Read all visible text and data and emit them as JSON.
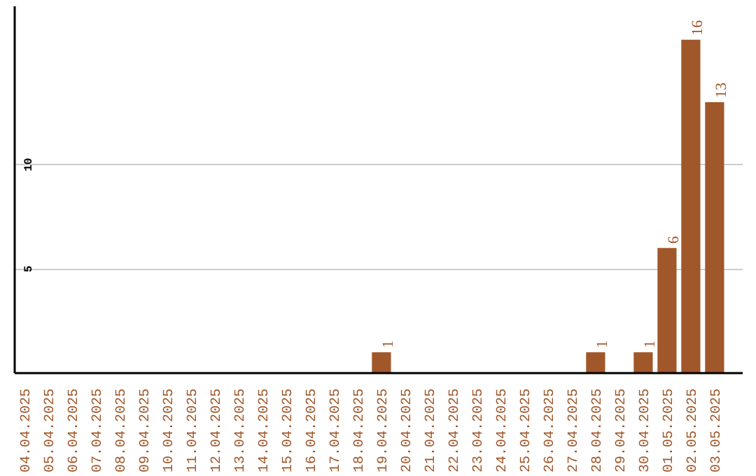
{
  "chart_data": {
    "type": "bar",
    "categories": [
      "04.04.2025",
      "05.04.2025",
      "06.04.2025",
      "07.04.2025",
      "08.04.2025",
      "09.04.2025",
      "10.04.2025",
      "11.04.2025",
      "12.04.2025",
      "13.04.2025",
      "14.04.2025",
      "15.04.2025",
      "16.04.2025",
      "17.04.2025",
      "18.04.2025",
      "19.04.2025",
      "20.04.2025",
      "21.04.2025",
      "22.04.2025",
      "23.04.2025",
      "24.04.2025",
      "25.04.2025",
      "26.04.2025",
      "27.04.2025",
      "28.04.2025",
      "29.04.2025",
      "30.04.2025",
      "01.05.2025",
      "02.05.2025",
      "03.05.2025"
    ],
    "values": [
      0,
      0,
      0,
      0,
      0,
      0,
      0,
      0,
      0,
      0,
      0,
      0,
      0,
      0,
      0,
      1,
      0,
      0,
      0,
      0,
      0,
      0,
      0,
      0,
      1,
      0,
      1,
      6,
      16,
      13
    ],
    "value_labels": [
      null,
      null,
      null,
      null,
      null,
      null,
      null,
      null,
      null,
      null,
      null,
      null,
      null,
      null,
      null,
      "1",
      null,
      null,
      null,
      null,
      null,
      null,
      null,
      null,
      "1",
      null,
      "1",
      "6",
      "16",
      "13"
    ],
    "color": "#a0572a",
    "ylim": [
      0,
      17.6
    ],
    "yticks": [
      5,
      10
    ],
    "grid": "y"
  }
}
